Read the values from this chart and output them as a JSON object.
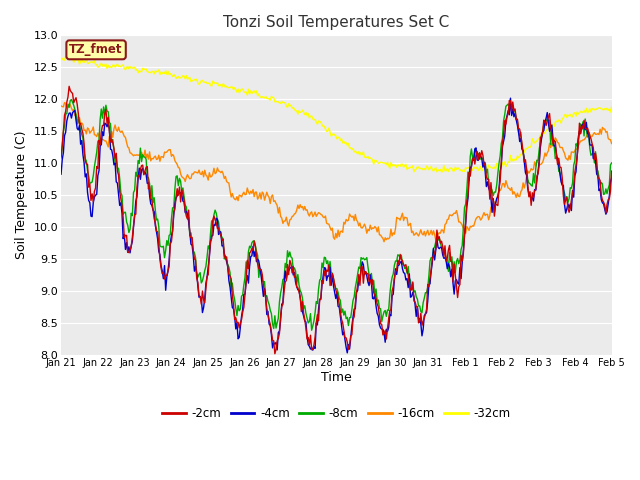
{
  "title": "Tonzi Soil Temperatures Set C",
  "xlabel": "Time",
  "ylabel": "Soil Temperature (C)",
  "annotation": "TZ_fmet",
  "ylim": [
    8.0,
    13.0
  ],
  "yticks": [
    8.0,
    8.5,
    9.0,
    9.5,
    10.0,
    10.5,
    11.0,
    11.5,
    12.0,
    12.5,
    13.0
  ],
  "xtick_labels": [
    "Jan 21",
    "Jan 22",
    "Jan 23",
    "Jan 24",
    "Jan 25",
    "Jan 26",
    "Jan 27",
    "Jan 28",
    "Jan 29",
    "Jan 30",
    "Jan 31",
    "Feb 1",
    "Feb 2",
    "Feb 3",
    "Feb 4",
    "Feb 5"
  ],
  "series": {
    "-2cm": {
      "color": "#cc0000",
      "linewidth": 1.0
    },
    "-4cm": {
      "color": "#0000cc",
      "linewidth": 1.0
    },
    "-8cm": {
      "color": "#00aa00",
      "linewidth": 1.0
    },
    "-16cm": {
      "color": "#ff8800",
      "linewidth": 1.0
    },
    "-32cm": {
      "color": "#ffff00",
      "linewidth": 1.0
    }
  },
  "legend_colors": {
    "-2cm": "#cc0000",
    "-4cm": "#0000cc",
    "-8cm": "#00aa00",
    "-16cm": "#ff8800",
    "-32cm": "#ffff00"
  },
  "bg_color": "#ebebeb",
  "fig_color": "#ffffff",
  "grid_color": "#ffffff",
  "n_points": 480
}
